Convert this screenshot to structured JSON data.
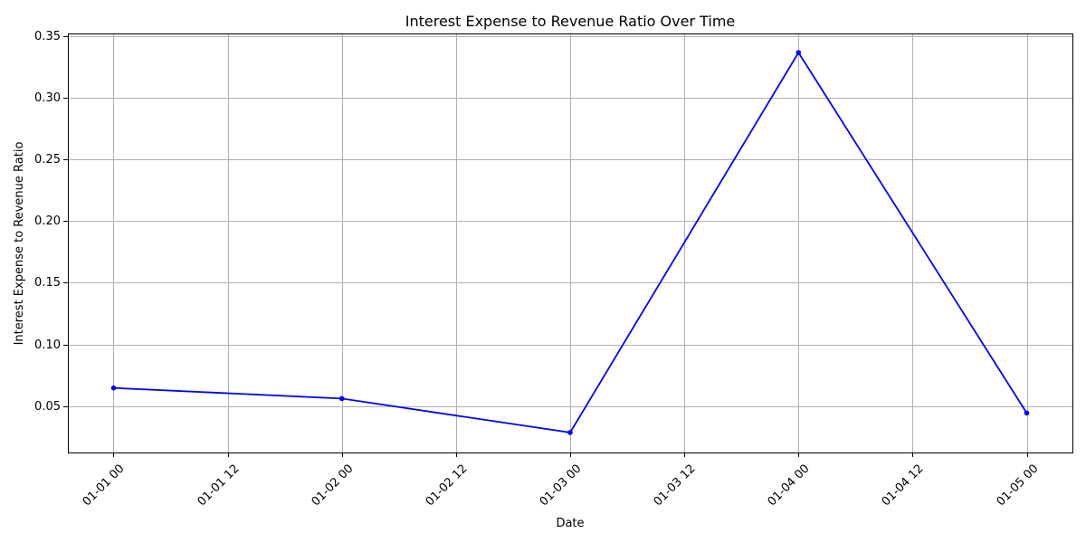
{
  "chart_data": {
    "type": "line",
    "title": "Interest Expense to Revenue Ratio Over Time",
    "xlabel": "Date",
    "ylabel": "Interest Expense to Revenue Ratio",
    "x": [
      "01-01 00",
      "01-02 00",
      "01-03 00",
      "01-04 00",
      "01-05 00"
    ],
    "x_days": [
      0,
      1,
      2,
      3,
      4
    ],
    "x_ticks": [
      {
        "day": 0,
        "label": "01-01 00"
      },
      {
        "day": 0.5,
        "label": "01-01 12"
      },
      {
        "day": 1,
        "label": "01-02 00"
      },
      {
        "day": 1.5,
        "label": "01-02 12"
      },
      {
        "day": 2,
        "label": "01-03 00"
      },
      {
        "day": 2.5,
        "label": "01-03 12"
      },
      {
        "day": 3,
        "label": "01-04 00"
      },
      {
        "day": 3.5,
        "label": "01-04 12"
      },
      {
        "day": 4,
        "label": "01-05 00"
      }
    ],
    "xlim": [
      -0.2,
      4.2
    ],
    "y_ticks": [
      {
        "value": 0.05,
        "label": "0.05"
      },
      {
        "value": 0.1,
        "label": "0.10"
      },
      {
        "value": 0.15,
        "label": "0.15"
      },
      {
        "value": 0.2,
        "label": "0.20"
      },
      {
        "value": 0.25,
        "label": "0.25"
      },
      {
        "value": 0.3,
        "label": "0.30"
      },
      {
        "value": 0.35,
        "label": "0.35"
      }
    ],
    "ylim": [
      0.0125,
      0.352
    ],
    "series": [
      {
        "values": [
          0.0648,
          0.0562,
          0.0287,
          0.3365,
          0.0445
        ],
        "color": "#0000ff",
        "marker": "circle"
      }
    ],
    "grid": true,
    "legend": "none"
  }
}
